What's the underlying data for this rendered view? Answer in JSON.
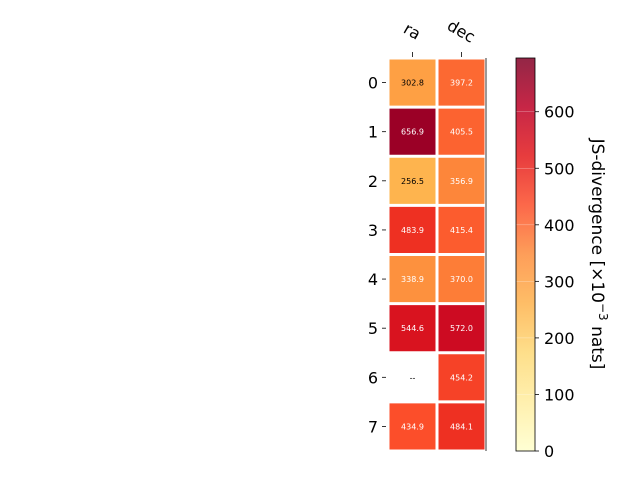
{
  "chart_data": {
    "type": "heatmap",
    "columns": [
      "ra",
      "dec"
    ],
    "rows": [
      "0",
      "1",
      "2",
      "3",
      "4",
      "5",
      "6",
      "7"
    ],
    "values": [
      [
        302.8,
        397.2
      ],
      [
        656.9,
        405.5
      ],
      [
        256.5,
        356.9
      ],
      [
        483.9,
        415.4
      ],
      [
        338.9,
        370.0
      ],
      [
        544.6,
        572.0
      ],
      [
        null,
        454.2
      ],
      [
        434.9,
        484.1
      ]
    ],
    "cell_labels": [
      [
        "302.8",
        "397.2"
      ],
      [
        "656.9",
        "405.5"
      ],
      [
        "256.5",
        "356.9"
      ],
      [
        "483.9",
        "415.4"
      ],
      [
        "338.9",
        "370.0"
      ],
      [
        "544.6",
        "572.0"
      ],
      [
        "--",
        "454.2"
      ],
      [
        "434.9",
        "484.1"
      ]
    ],
    "colorbar": {
      "label_prefix": "JS-divergence [×10",
      "label_exponent": "−3",
      "label_suffix": " nats]",
      "vmin": 0,
      "vmax": 695,
      "ticks": [
        0,
        100,
        200,
        300,
        400,
        500,
        600
      ],
      "colormap": "YlOrRd"
    }
  }
}
